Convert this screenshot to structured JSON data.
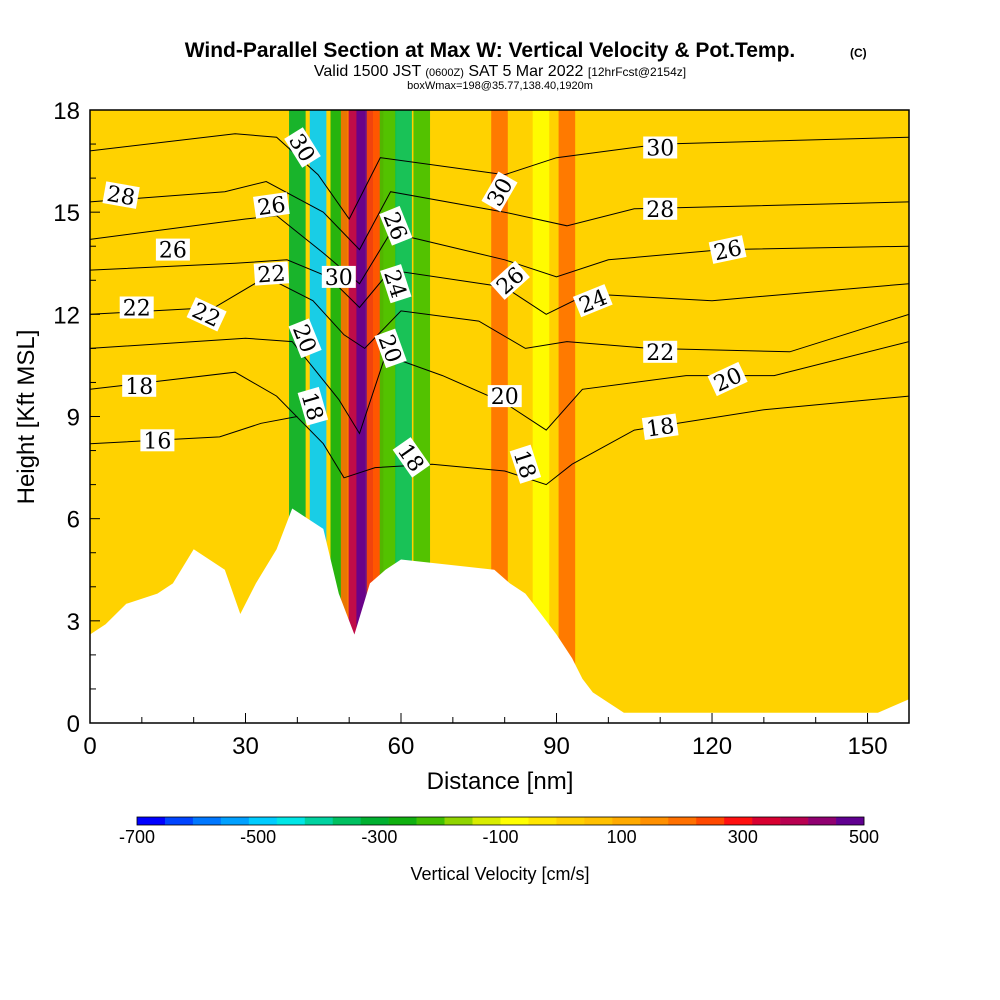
{
  "chart_data": {
    "type": "heatmap",
    "title": "Wind-Parallel Section at Max W: Vertical Velocity & Pot.Temp.",
    "title_mark": "(C)",
    "subtitle": {
      "valid_label": "Valid 1500 JST",
      "utc_time": "(0600Z)",
      "date": "SAT 5 Mar 2022",
      "forecast": "[12hrFcst@2154z]"
    },
    "subtitle2": "boxWmax=198@35.77,138.40,1920m",
    "xlabel": "Distance [nm]",
    "ylabel": "Height [Kft MSL]",
    "xlim": [
      0,
      158
    ],
    "ylim": [
      0,
      18
    ],
    "x_ticks": [
      "0",
      "30",
      "60",
      "90",
      "120",
      "150"
    ],
    "y_ticks": [
      "0",
      "3",
      "6",
      "9",
      "12",
      "15",
      "18"
    ],
    "colorbar": {
      "label": "Vertical Velocity [cm/s]",
      "tick_labels": [
        "-700",
        "-500",
        "-300",
        "-100",
        "100",
        "300",
        "500"
      ],
      "range": [
        -700,
        500
      ],
      "colors": [
        "#0000ff",
        "#0044ff",
        "#0077ff",
        "#00a0ff",
        "#00ccff",
        "#00e6e6",
        "#00d2a0",
        "#00c060",
        "#00b030",
        "#10b010",
        "#40c000",
        "#90d400",
        "#d8ec00",
        "#ffff00",
        "#ffe600",
        "#ffd000",
        "#ffc000",
        "#ffaa00",
        "#ff9000",
        "#ff7000",
        "#ff4800",
        "#ff1010",
        "#d80030",
        "#b80050",
        "#900070",
        "#600090"
      ]
    },
    "velocity_bands": [
      {
        "x": 40,
        "value": -320
      },
      {
        "x": 44,
        "value": -480
      },
      {
        "x": 48,
        "value": -250
      },
      {
        "x": 50,
        "value": 200
      },
      {
        "x": 51.5,
        "value": 400
      },
      {
        "x": 53,
        "value": 480
      },
      {
        "x": 55,
        "value": 260
      },
      {
        "x": 57.5,
        "value": -220
      },
      {
        "x": 60.5,
        "value": -360
      },
      {
        "x": 64,
        "value": -200
      },
      {
        "x": 79,
        "value": 220
      },
      {
        "x": 87,
        "value": -100
      },
      {
        "x": 92,
        "value": 200
      }
    ],
    "terrain": [
      [
        0,
        2.6
      ],
      [
        3,
        2.9
      ],
      [
        7,
        3.5
      ],
      [
        13,
        3.8
      ],
      [
        16,
        4.1
      ],
      [
        20,
        5.1
      ],
      [
        26,
        4.5
      ],
      [
        29,
        3.2
      ],
      [
        32,
        4.1
      ],
      [
        36,
        5.1
      ],
      [
        39,
        6.3
      ],
      [
        45,
        5.7
      ],
      [
        48,
        3.8
      ],
      [
        51,
        2.6
      ],
      [
        54,
        4.1
      ],
      [
        57,
        4.5
      ],
      [
        60,
        4.8
      ],
      [
        78,
        4.5
      ],
      [
        81,
        4.1
      ],
      [
        84,
        3.8
      ],
      [
        87,
        3.2
      ],
      [
        90,
        2.6
      ],
      [
        93,
        1.9
      ],
      [
        95,
        1.3
      ],
      [
        97,
        0.9
      ],
      [
        100,
        0.6
      ],
      [
        103,
        0.3
      ],
      [
        152,
        0.3
      ],
      [
        155,
        0.5
      ],
      [
        158,
        0.7
      ]
    ],
    "theta_contours": [
      {
        "value": "16",
        "points": [
          [
            0,
            8.2
          ],
          [
            25,
            8.4
          ],
          [
            33,
            8.8
          ],
          [
            40,
            9.0
          ]
        ]
      },
      {
        "value": "18",
        "points": [
          [
            0,
            9.8
          ],
          [
            28,
            10.3
          ],
          [
            36,
            9.6
          ],
          [
            45,
            8.2
          ],
          [
            49,
            7.2
          ],
          [
            55,
            7.5
          ],
          [
            66,
            7.6
          ],
          [
            80,
            7.4
          ],
          [
            88,
            7.0
          ],
          [
            93,
            7.6
          ],
          [
            105,
            8.6
          ],
          [
            130,
            9.2
          ],
          [
            158,
            9.6
          ]
        ]
      },
      {
        "value": "20",
        "points": [
          [
            0,
            11.0
          ],
          [
            30,
            11.3
          ],
          [
            39,
            11.2
          ],
          [
            48,
            9.5
          ],
          [
            52,
            8.5
          ],
          [
            57,
            10.8
          ],
          [
            68,
            10.2
          ],
          [
            80,
            9.4
          ],
          [
            88,
            8.6
          ],
          [
            95,
            9.8
          ],
          [
            115,
            10.2
          ],
          [
            132,
            10.2
          ],
          [
            158,
            11.2
          ]
        ]
      },
      {
        "value": "22",
        "points": [
          [
            0,
            12.0
          ],
          [
            24,
            12.2
          ],
          [
            34,
            13.1
          ],
          [
            43,
            12.4
          ],
          [
            49,
            11.4
          ],
          [
            53,
            11.0
          ],
          [
            60,
            12.1
          ],
          [
            75,
            11.8
          ],
          [
            84,
            11.0
          ],
          [
            92,
            11.2
          ],
          [
            108,
            11.0
          ],
          [
            135,
            10.9
          ],
          [
            158,
            12.0
          ]
        ]
      },
      {
        "value": "24",
        "points": [
          [
            0,
            13.3
          ],
          [
            28,
            13.5
          ],
          [
            38,
            13.6
          ],
          [
            46,
            13.1
          ],
          [
            52,
            12.2
          ],
          [
            58,
            13.3
          ],
          [
            80,
            12.8
          ],
          [
            88,
            12.0
          ],
          [
            96,
            12.6
          ],
          [
            120,
            12.4
          ],
          [
            158,
            12.9
          ]
        ]
      },
      {
        "value": "26",
        "points": [
          [
            0,
            14.2
          ],
          [
            30,
            14.8
          ],
          [
            36,
            14.9
          ],
          [
            45,
            13.8
          ],
          [
            52,
            12.9
          ],
          [
            58,
            14.4
          ],
          [
            80,
            13.6
          ],
          [
            90,
            13.1
          ],
          [
            100,
            13.6
          ],
          [
            122,
            13.9
          ],
          [
            158,
            14.0
          ]
        ]
      },
      {
        "value": "28",
        "points": [
          [
            0,
            15.3
          ],
          [
            26,
            15.6
          ],
          [
            34,
            15.9
          ],
          [
            45,
            15.0
          ],
          [
            52,
            13.9
          ],
          [
            58,
            15.6
          ],
          [
            80,
            15.0
          ],
          [
            92,
            14.6
          ],
          [
            105,
            15.1
          ],
          [
            158,
            15.3
          ]
        ]
      },
      {
        "value": "30",
        "points": [
          [
            0,
            16.8
          ],
          [
            28,
            17.3
          ],
          [
            36,
            17.2
          ],
          [
            44,
            16.1
          ],
          [
            50,
            14.8
          ],
          [
            56,
            16.6
          ],
          [
            80,
            16.1
          ],
          [
            90,
            16.6
          ],
          [
            110,
            17.0
          ],
          [
            158,
            17.2
          ]
        ]
      }
    ],
    "contour_labels": [
      {
        "text": "28",
        "x": 6,
        "y": 15.5,
        "angle": 10
      },
      {
        "text": "26",
        "x": 16,
        "y": 13.9,
        "angle": 0
      },
      {
        "text": "22",
        "x": 9,
        "y": 12.2,
        "angle": 0
      },
      {
        "text": "22",
        "x": 22.5,
        "y": 12.0,
        "angle": 25
      },
      {
        "text": "18",
        "x": 9.5,
        "y": 9.9,
        "angle": 0
      },
      {
        "text": "16",
        "x": 13,
        "y": 8.3,
        "angle": 0
      },
      {
        "text": "30",
        "x": 41,
        "y": 16.9,
        "angle": 58
      },
      {
        "text": "26",
        "x": 35,
        "y": 15.2,
        "angle": -8
      },
      {
        "text": "22",
        "x": 35,
        "y": 13.2,
        "angle": -4
      },
      {
        "text": "30",
        "x": 48,
        "y": 13.1,
        "angle": 0
      },
      {
        "text": "20",
        "x": 41.5,
        "y": 11.3,
        "angle": 68
      },
      {
        "text": "18",
        "x": 43,
        "y": 9.3,
        "angle": 74
      },
      {
        "text": "26",
        "x": 59,
        "y": 14.6,
        "angle": 68
      },
      {
        "text": "24",
        "x": 59,
        "y": 12.9,
        "angle": 72
      },
      {
        "text": "20",
        "x": 58,
        "y": 11.0,
        "angle": 70
      },
      {
        "text": "18",
        "x": 62,
        "y": 7.8,
        "angle": 55
      },
      {
        "text": "30",
        "x": 79,
        "y": 15.6,
        "angle": -60
      },
      {
        "text": "26",
        "x": 81,
        "y": 13.0,
        "angle": -42
      },
      {
        "text": "20",
        "x": 80,
        "y": 9.6,
        "angle": 0
      },
      {
        "text": "18",
        "x": 84,
        "y": 7.6,
        "angle": 72
      },
      {
        "text": "24",
        "x": 97,
        "y": 12.4,
        "angle": -22
      },
      {
        "text": "30",
        "x": 110,
        "y": 16.9,
        "angle": 0
      },
      {
        "text": "28",
        "x": 110,
        "y": 15.1,
        "angle": 0
      },
      {
        "text": "26",
        "x": 123,
        "y": 13.9,
        "angle": -12
      },
      {
        "text": "22",
        "x": 110,
        "y": 10.9,
        "angle": 0
      },
      {
        "text": "20",
        "x": 123,
        "y": 10.1,
        "angle": -25
      },
      {
        "text": "18",
        "x": 110,
        "y": 8.7,
        "angle": -8
      }
    ]
  }
}
